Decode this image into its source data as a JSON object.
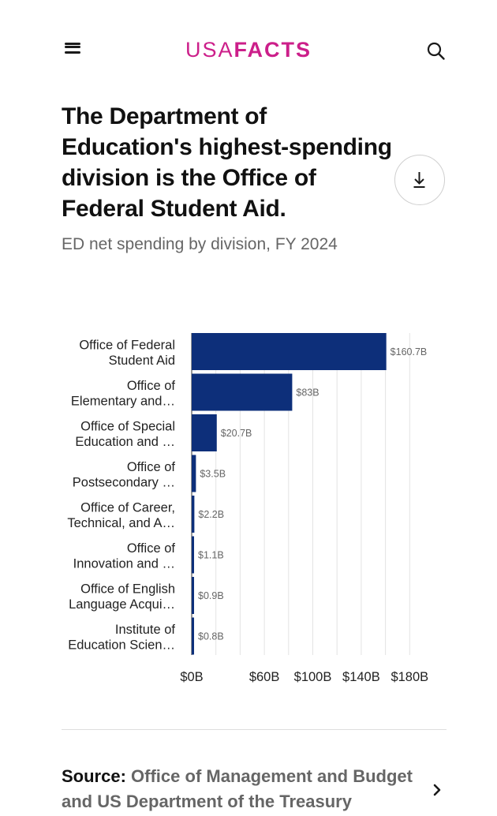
{
  "header": {
    "logo_light": "USA",
    "logo_bold": "FACTS"
  },
  "title": "The Department of Education's highest-spending division is the Office of Federal Student Aid.",
  "subtitle": "ED net spending by division, FY 2024",
  "chart_data": {
    "type": "bar",
    "orientation": "horizontal",
    "categories": [
      [
        "Office of Federal",
        "Student Aid"
      ],
      [
        "Office of",
        "Elementary and…"
      ],
      [
        "Office of Special",
        "Education and …"
      ],
      [
        "Office of",
        "Postsecondary …"
      ],
      [
        "Office of Career,",
        "Technical, and A…"
      ],
      [
        "Office of",
        "Innovation and …"
      ],
      [
        "Office of English",
        "Language Acqui…"
      ],
      [
        "Institute of",
        "Education Scien…"
      ]
    ],
    "values": [
      160.7,
      83,
      20.7,
      3.5,
      2.2,
      1.1,
      0.9,
      0.8
    ],
    "value_labels": [
      "$160.7B",
      "$83B",
      "$20.7B",
      "$3.5B",
      "$2.2B",
      "$1.1B",
      "$0.9B",
      "$0.8B"
    ],
    "x_ticks": [
      0,
      60,
      100,
      140,
      180
    ],
    "x_tick_labels": [
      "$0B",
      "$60B",
      "$100B",
      "$140B",
      "$180B"
    ],
    "gridlines_at": [
      0,
      20,
      40,
      60,
      80,
      100,
      120,
      140,
      160,
      180
    ],
    "xlim": [
      0,
      180
    ],
    "grid": true,
    "bar_color": "#0d2f7a"
  },
  "source": {
    "label": "Source:",
    "text": "Office of Management and Budget and US Department of the Treasury"
  }
}
